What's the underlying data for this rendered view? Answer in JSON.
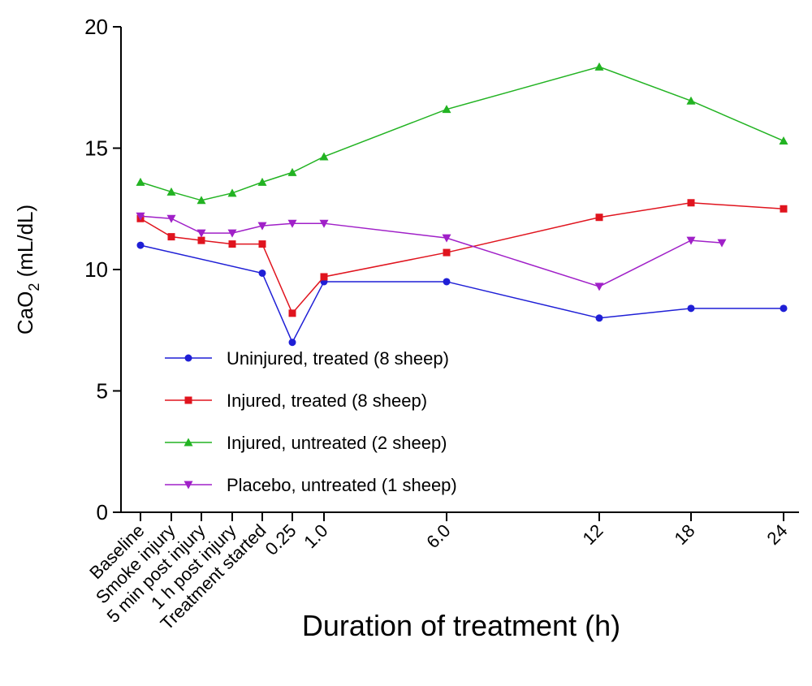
{
  "chart_data": {
    "type": "line",
    "xlabel": "Duration of treatment (h)",
    "ylabel_main": "CaO",
    "ylabel_sub": "2",
    "ylabel_unit": " (mL/dL)",
    "ylim": [
      0,
      20
    ],
    "yticks": [
      "0",
      "5",
      "10",
      "15",
      "20"
    ],
    "xticks": [
      "Baseline",
      "Smoke injury",
      "5 min post injury",
      "1 h post injury",
      "Treatment started",
      "0.25",
      "1.0",
      "6.0",
      "12",
      "18",
      "24"
    ],
    "legend_position": "lower-left",
    "grid": false,
    "series": [
      {
        "name": "Uninjured, treated (8 sheep)",
        "color": "#1f1fd6",
        "marker": "circle",
        "points": [
          {
            "x": "Baseline",
            "y": 11.0
          },
          {
            "x": "Treatment started",
            "y": 9.85
          },
          {
            "x": "0.25",
            "y": 7.0
          },
          {
            "x": "1.0",
            "y": 9.5
          },
          {
            "x": "6.0",
            "y": 9.5
          },
          {
            "x": "12",
            "y": 8.0
          },
          {
            "x": "18",
            "y": 8.4
          },
          {
            "x": "24",
            "y": 8.4
          }
        ]
      },
      {
        "name": "Injured, treated (8 sheep)",
        "color": "#e0141e",
        "marker": "square",
        "points": [
          {
            "x": "Baseline",
            "y": 12.1
          },
          {
            "x": "Smoke injury",
            "y": 11.35
          },
          {
            "x": "5 min post injury",
            "y": 11.2
          },
          {
            "x": "1 h post injury",
            "y": 11.05
          },
          {
            "x": "Treatment started",
            "y": 11.05
          },
          {
            "x": "0.25",
            "y": 8.2
          },
          {
            "x": "1.0",
            "y": 9.7
          },
          {
            "x": "6.0",
            "y": 10.7
          },
          {
            "x": "12",
            "y": 12.15
          },
          {
            "x": "18",
            "y": 12.75
          },
          {
            "x": "24",
            "y": 12.5
          }
        ]
      },
      {
        "name": "Injured, untreated (2 sheep)",
        "color": "#22b322",
        "marker": "triangle-up",
        "points": [
          {
            "x": "Baseline",
            "y": 13.6
          },
          {
            "x": "Smoke injury",
            "y": 13.2
          },
          {
            "x": "5 min post injury",
            "y": 12.85
          },
          {
            "x": "1 h post injury",
            "y": 13.15
          },
          {
            "x": "Treatment started",
            "y": 13.6
          },
          {
            "x": "0.25",
            "y": 14.0
          },
          {
            "x": "1.0",
            "y": 14.65
          },
          {
            "x": "6.0",
            "y": 16.6
          },
          {
            "x": "12",
            "y": 18.35
          },
          {
            "x": "18",
            "y": 16.95
          },
          {
            "x": "24",
            "y": 15.3
          }
        ]
      },
      {
        "name": "Placebo, untreated (1 sheep)",
        "color": "#a020c8",
        "marker": "triangle-down",
        "points": [
          {
            "x": "Baseline",
            "y": 12.2
          },
          {
            "x": "Smoke injury",
            "y": 12.1
          },
          {
            "x": "5 min post injury",
            "y": 11.5
          },
          {
            "x": "1 h post injury",
            "y": 11.5
          },
          {
            "x": "Treatment started",
            "y": 11.8
          },
          {
            "x": "0.25",
            "y": 11.9
          },
          {
            "x": "1.0",
            "y": 11.9
          },
          {
            "x": "6.0",
            "y": 11.3
          },
          {
            "x": "12",
            "y": 9.3
          },
          {
            "x": "18",
            "y": 11.2
          },
          {
            "x": 20,
            "y": 11.1
          }
        ]
      }
    ]
  }
}
